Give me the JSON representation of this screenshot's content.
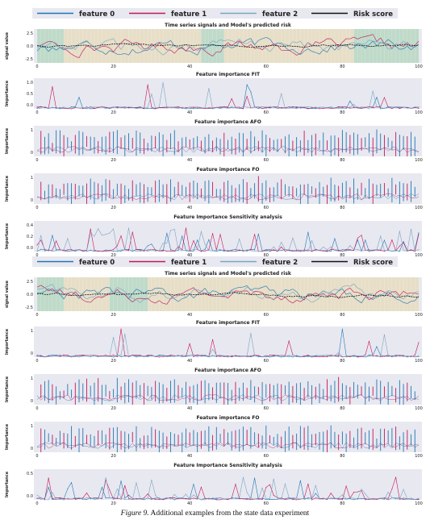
{
  "caption": {
    "label": "Figure 9.",
    "text": " Additional examples from the state data experiment"
  },
  "colors": {
    "feature_0": "#1f77b4",
    "feature_1": "#c2185b",
    "feature_2": "#7aa6c2",
    "risk": "#111111",
    "panel_bg": "#e8e8f0",
    "shade_tan": "#e6dcc0",
    "shade_green": "#b7d7c2"
  },
  "chart_data": [
    {
      "group": "top",
      "legend": [
        "feature 0",
        "feature 1",
        "feature 2",
        "Risk score"
      ],
      "panels": [
        {
          "type": "line",
          "title": "Time series signals and Model's predicted risk",
          "ylabel": "signal value",
          "yticks": [
            "2.5",
            "0.0",
            "-2.5"
          ],
          "xticks": [
            "0",
            "20",
            "40",
            "60",
            "80",
            "100"
          ],
          "xlim": [
            0,
            100
          ]
        },
        {
          "type": "line",
          "title": "Feature importance FIT",
          "ylabel": "Importance",
          "yticks": [
            "1.0",
            "0.5",
            "0.0"
          ],
          "xticks": [
            "0",
            "20",
            "40",
            "60",
            "80",
            "100"
          ],
          "xlim": [
            0,
            100
          ]
        },
        {
          "type": "errorbar",
          "title": "Feature importance AFO",
          "ylabel": "Importance",
          "yticks": [
            "1",
            "0"
          ],
          "xticks": [
            "0",
            "20",
            "40",
            "60",
            "80",
            "100"
          ],
          "xlim": [
            0,
            100
          ]
        },
        {
          "type": "errorbar",
          "title": "Feature importance FO",
          "ylabel": "Importance",
          "yticks": [
            "1",
            "0"
          ],
          "xticks": [
            "0",
            "20",
            "40",
            "60",
            "80",
            "100"
          ],
          "xlim": [
            0,
            100
          ]
        },
        {
          "type": "line",
          "title": "Feature Importance Sensitivity analysis",
          "ylabel": "Importance",
          "yticks": [
            "0.4",
            "0.2",
            "0.0"
          ],
          "xticks": [
            "0",
            "20",
            "40",
            "60",
            "80",
            "100"
          ],
          "xlim": [
            0,
            100
          ]
        }
      ]
    },
    {
      "group": "bottom",
      "legend": [
        "feature 0",
        "feature 1",
        "feature 2",
        "Risk score"
      ],
      "panels": [
        {
          "type": "line",
          "title": "Time series signals and Model's predicted risk",
          "ylabel": "signal value",
          "yticks": [
            "2.5",
            "0.0",
            "-2.5"
          ],
          "xticks": [
            "0",
            "20",
            "40",
            "60",
            "80",
            "100"
          ],
          "xlim": [
            0,
            100
          ]
        },
        {
          "type": "line",
          "title": "Feature importance FIT",
          "ylabel": "Importance",
          "yticks": [
            "1",
            "0"
          ],
          "xticks": [
            "0",
            "20",
            "40",
            "60",
            "80",
            "100"
          ],
          "xlim": [
            0,
            100
          ]
        },
        {
          "type": "errorbar",
          "title": "Feature importance AFO",
          "ylabel": "Importance",
          "yticks": [
            "1",
            "0"
          ],
          "xticks": [
            "0",
            "20",
            "40",
            "60",
            "80",
            "100"
          ],
          "xlim": [
            0,
            100
          ]
        },
        {
          "type": "errorbar",
          "title": "Feature importance FO",
          "ylabel": "Importance",
          "yticks": [
            "1",
            "0"
          ],
          "xticks": [
            "0",
            "20",
            "40",
            "60",
            "80",
            "100"
          ],
          "xlim": [
            0,
            100
          ]
        },
        {
          "type": "line",
          "title": "Feature Importance Sensitivity analysis",
          "ylabel": "Importance",
          "yticks": [
            "0.5",
            "0.0"
          ],
          "xticks": [
            "0",
            "20",
            "40",
            "60",
            "80",
            "100"
          ],
          "xlim": [
            0,
            100
          ]
        }
      ]
    }
  ]
}
